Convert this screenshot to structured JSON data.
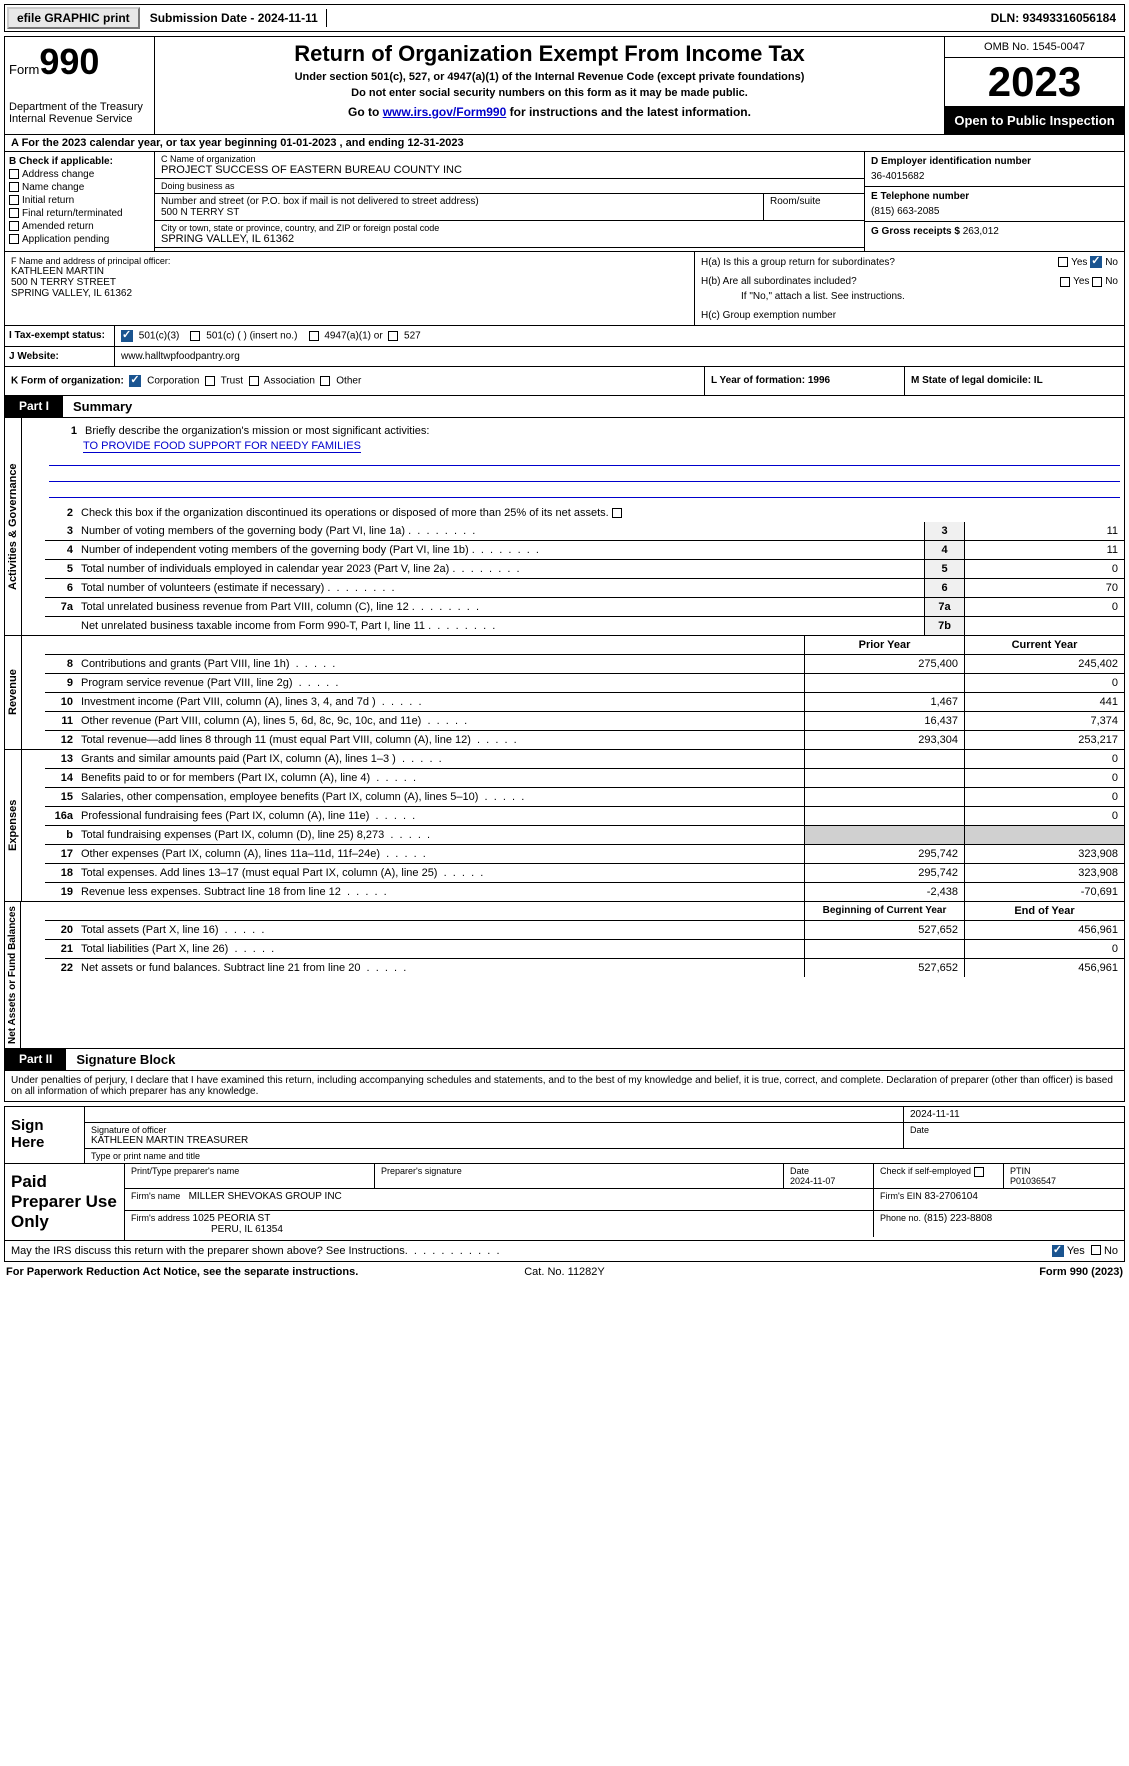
{
  "topbar": {
    "efile": "efile GRAPHIC print",
    "submission": "Submission Date - 2024-11-11",
    "dln": "DLN: 93493316056184"
  },
  "header": {
    "form_word": "Form",
    "form_num": "990",
    "dept": "Department of the Treasury",
    "irs": "Internal Revenue Service",
    "title": "Return of Organization Exempt From Income Tax",
    "sub1": "Under section 501(c), 527, or 4947(a)(1) of the Internal Revenue Code (except private foundations)",
    "sub2": "Do not enter social security numbers on this form as it may be made public.",
    "link_pre": "Go to ",
    "link_url": "www.irs.gov/Form990",
    "link_post": " for instructions and the latest information.",
    "omb": "OMB No. 1545-0047",
    "year": "2023",
    "open": "Open to Public Inspection"
  },
  "section_a": "A For the 2023 calendar year, or tax year beginning 01-01-2023   , and ending 12-31-2023",
  "col_b": {
    "heading": "B Check if applicable:",
    "opts": [
      "Address change",
      "Name change",
      "Initial return",
      "Final return/terminated",
      "Amended return",
      "Application pending"
    ]
  },
  "col_c": {
    "name_label": "C Name of organization",
    "name": "PROJECT SUCCESS OF EASTERN BUREAU COUNTY INC",
    "dba_label": "Doing business as",
    "dba": "",
    "addr_label": "Number and street (or P.O. box if mail is not delivered to street address)",
    "addr": "500 N TERRY ST",
    "room_label": "Room/suite",
    "city_label": "City or town, state or province, country, and ZIP or foreign postal code",
    "city": "SPRING VALLEY, IL  61362"
  },
  "col_d": {
    "d_label": "D Employer identification number",
    "d_val": "36-4015682",
    "e_label": "E Telephone number",
    "e_val": "(815) 663-2085",
    "g_label": "G Gross receipts $ ",
    "g_val": "263,012"
  },
  "block_f": {
    "f_label": "F  Name and address of principal officer:",
    "f_name": "KATHLEEN MARTIN",
    "f_addr1": "500 N TERRY STREET",
    "f_addr2": "SPRING VALLEY, IL  61362",
    "ha": "H(a)  Is this a group return for subordinates?",
    "hb": "H(b)  Are all subordinates included?",
    "hb_note": "If \"No,\" attach a list. See instructions.",
    "hc": "H(c)  Group exemption number",
    "yes": "Yes",
    "no": "No"
  },
  "row_i": {
    "label": "I   Tax-exempt status:",
    "opt1": "501(c)(3)",
    "opt2": "501(c) (  ) (insert no.)",
    "opt3": "4947(a)(1) or",
    "opt4": "527"
  },
  "row_j": {
    "label": "J   Website:",
    "val": "www.halltwpfoodpantry.org"
  },
  "row_klm": {
    "k_label": "K Form of organization:",
    "k1": "Corporation",
    "k2": "Trust",
    "k3": "Association",
    "k4": "Other",
    "l": "L Year of formation: 1996",
    "m": "M State of legal domicile: IL"
  },
  "part1": {
    "num": "Part I",
    "title": "Summary",
    "vlabels": [
      "Activities & Governance",
      "Revenue",
      "Expenses",
      "Net Assets or Fund Balances"
    ],
    "r1_text": "Briefly describe the organization's mission or most significant activities:",
    "r1_mission": "TO PROVIDE FOOD SUPPORT FOR NEEDY FAMILIES",
    "r2_text": "Check this box  if the organization discontinued its operations or disposed of more than 25% of its net assets.",
    "rows_gov": [
      {
        "n": "3",
        "t": "Number of voting members of the governing body (Part VI, line 1a)",
        "k": "3",
        "v": "11"
      },
      {
        "n": "4",
        "t": "Number of independent voting members of the governing body (Part VI, line 1b)",
        "k": "4",
        "v": "11"
      },
      {
        "n": "5",
        "t": "Total number of individuals employed in calendar year 2023 (Part V, line 2a)",
        "k": "5",
        "v": "0"
      },
      {
        "n": "6",
        "t": "Total number of volunteers (estimate if necessary)",
        "k": "6",
        "v": "70"
      },
      {
        "n": "7a",
        "t": "Total unrelated business revenue from Part VIII, column (C), line 12",
        "k": "7a",
        "v": "0"
      },
      {
        "n": "",
        "t": "Net unrelated business taxable income from Form 990-T, Part I, line 11",
        "k": "7b",
        "v": ""
      }
    ],
    "col_prior": "Prior Year",
    "col_curr": "Current Year",
    "rows_rev": [
      {
        "n": "8",
        "t": "Contributions and grants (Part VIII, line 1h)",
        "a": "275,400",
        "b": "245,402"
      },
      {
        "n": "9",
        "t": "Program service revenue (Part VIII, line 2g)",
        "a": "",
        "b": "0"
      },
      {
        "n": "10",
        "t": "Investment income (Part VIII, column (A), lines 3, 4, and 7d )",
        "a": "1,467",
        "b": "441"
      },
      {
        "n": "11",
        "t": "Other revenue (Part VIII, column (A), lines 5, 6d, 8c, 9c, 10c, and 11e)",
        "a": "16,437",
        "b": "7,374"
      },
      {
        "n": "12",
        "t": "Total revenue—add lines 8 through 11 (must equal Part VIII, column (A), line 12)",
        "a": "293,304",
        "b": "253,217"
      }
    ],
    "rows_exp": [
      {
        "n": "13",
        "t": "Grants and similar amounts paid (Part IX, column (A), lines 1–3 )",
        "a": "",
        "b": "0"
      },
      {
        "n": "14",
        "t": "Benefits paid to or for members (Part IX, column (A), line 4)",
        "a": "",
        "b": "0"
      },
      {
        "n": "15",
        "t": "Salaries, other compensation, employee benefits (Part IX, column (A), lines 5–10)",
        "a": "",
        "b": "0"
      },
      {
        "n": "16a",
        "t": "Professional fundraising fees (Part IX, column (A), line 11e)",
        "a": "",
        "b": "0"
      },
      {
        "n": "b",
        "t": "Total fundraising expenses (Part IX, column (D), line 25) 8,273",
        "a": "GREY",
        "b": "GREY"
      },
      {
        "n": "17",
        "t": "Other expenses (Part IX, column (A), lines 11a–11d, 11f–24e)",
        "a": "295,742",
        "b": "323,908"
      },
      {
        "n": "18",
        "t": "Total expenses. Add lines 13–17 (must equal Part IX, column (A), line 25)",
        "a": "295,742",
        "b": "323,908"
      },
      {
        "n": "19",
        "t": "Revenue less expenses. Subtract line 18 from line 12",
        "a": "-2,438",
        "b": "-70,691"
      }
    ],
    "col_begin": "Beginning of Current Year",
    "col_end": "End of Year",
    "rows_net": [
      {
        "n": "20",
        "t": "Total assets (Part X, line 16)",
        "a": "527,652",
        "b": "456,961"
      },
      {
        "n": "21",
        "t": "Total liabilities (Part X, line 26)",
        "a": "",
        "b": "0"
      },
      {
        "n": "22",
        "t": "Net assets or fund balances. Subtract line 21 from line 20",
        "a": "527,652",
        "b": "456,961"
      }
    ]
  },
  "part2": {
    "num": "Part II",
    "title": "Signature Block",
    "intro": "Under penalties of perjury, I declare that I have examined this return, including accompanying schedules and statements, and to the best of my knowledge and belief, it is true, correct, and complete. Declaration of preparer (other than officer) is based on all information of which preparer has any knowledge.",
    "sign_here": "Sign Here",
    "sig_of_officer": "Signature of officer",
    "officer": "KATHLEEN MARTIN TREASURER",
    "type_name": "Type or print name and title",
    "date_label": "Date",
    "sig_date": "2024-11-11",
    "paid": "Paid Preparer Use Only",
    "prep_name_label": "Print/Type preparer's name",
    "prep_sig_label": "Preparer's signature",
    "prep_date_label": "Date",
    "prep_date": "2024-11-07",
    "check_self": "Check  if self-employed",
    "ptin_label": "PTIN",
    "ptin": "P01036547",
    "firm_name_label": "Firm's name",
    "firm_name": "MILLER SHEVOKAS GROUP INC",
    "firm_ein_label": "Firm's EIN",
    "firm_ein": "83-2706104",
    "firm_addr_label": "Firm's address",
    "firm_addr": "1025 PEORIA ST",
    "firm_city": "PERU, IL  61354",
    "phone_label": "Phone no.",
    "phone": "(815) 223-8808",
    "may": "May the IRS discuss this return with the preparer shown above? See Instructions.",
    "yes": "Yes",
    "no": "No"
  },
  "footer": {
    "left": "For Paperwork Reduction Act Notice, see the separate instructions.",
    "center": "Cat. No. 11282Y",
    "right_a": "Form ",
    "right_b": "990",
    "right_c": " (2023)"
  }
}
